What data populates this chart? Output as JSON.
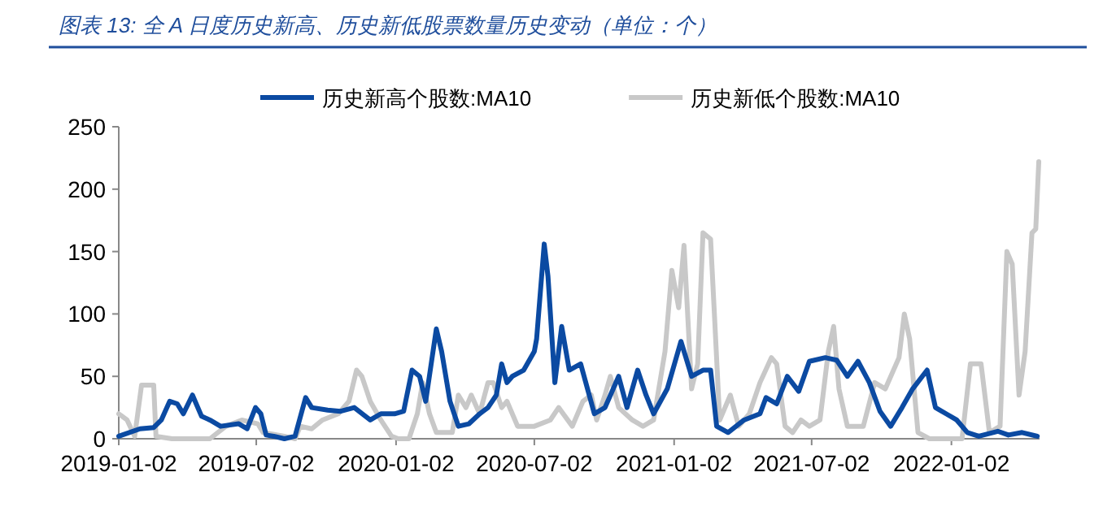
{
  "chart_data": {
    "type": "line",
    "title": "图表 13:  全 A 日度历史新高、历史新低股票数量历史变动（单位：个）",
    "xlim": [
      "2019-01-02",
      "2022-04-28"
    ],
    "xticks": [
      "2019-01-02",
      "2019-07-02",
      "2020-01-02",
      "2020-07-02",
      "2021-01-02",
      "2021-07-02",
      "2022-01-02"
    ],
    "ylim": [
      0,
      250
    ],
    "yticks": [
      0,
      50,
      100,
      150,
      200,
      250
    ],
    "grid": false,
    "legend": "top",
    "marker": "none",
    "line_style": "solid",
    "series": [
      {
        "name": "历史新高个股数:MA10",
        "color": "#0b4aa2",
        "x": [
          "2019-01-02",
          "2019-01-30",
          "2019-02-17",
          "2019-02-27",
          "2019-03-10",
          "2019-03-20",
          "2019-03-28",
          "2019-04-09",
          "2019-04-21",
          "2019-05-02",
          "2019-05-16",
          "2019-06-09",
          "2019-06-20",
          "2019-07-01",
          "2019-07-08",
          "2019-07-15",
          "2019-07-25",
          "2019-08-08",
          "2019-08-22",
          "2019-09-05",
          "2019-09-13",
          "2019-10-04",
          "2019-10-21",
          "2019-11-08",
          "2019-11-29",
          "2019-12-13",
          "2019-12-31",
          "2020-01-12",
          "2020-01-23",
          "2020-02-02",
          "2020-02-10",
          "2020-02-24",
          "2020-03-02",
          "2020-03-13",
          "2020-03-24",
          "2020-04-07",
          "2020-04-21",
          "2020-05-02",
          "2020-05-13",
          "2020-05-20",
          "2020-05-27",
          "2020-06-03",
          "2020-06-18",
          "2020-07-02",
          "2020-07-05",
          "2020-07-15",
          "2020-07-20",
          "2020-07-29",
          "2020-08-07",
          "2020-08-17",
          "2020-09-01",
          "2020-09-19",
          "2020-10-03",
          "2020-10-21",
          "2020-11-01",
          "2020-11-15",
          "2020-11-26",
          "2020-12-06",
          "2020-12-24",
          "2021-01-11",
          "2021-01-25",
          "2021-02-09",
          "2021-02-19",
          "2021-02-27",
          "2021-03-14",
          "2021-04-04",
          "2021-04-25",
          "2021-05-03",
          "2021-05-17",
          "2021-05-31",
          "2021-06-15",
          "2021-06-29",
          "2021-07-20",
          "2021-08-04",
          "2021-08-18",
          "2021-09-01",
          "2021-09-16",
          "2021-09-30",
          "2021-10-14",
          "2021-10-29",
          "2021-11-12",
          "2021-12-01",
          "2021-12-12",
          "2021-12-26",
          "2022-01-09",
          "2022-01-23",
          "2022-02-07",
          "2022-03-04",
          "2022-03-18",
          "2022-04-05",
          "2022-04-25"
        ],
        "values": [
          2,
          8,
          9,
          15,
          30,
          28,
          20,
          35,
          18,
          15,
          10,
          12,
          8,
          25,
          20,
          3,
          2,
          0,
          2,
          33,
          25,
          23,
          22,
          25,
          15,
          20,
          20,
          22,
          55,
          50,
          30,
          88,
          70,
          30,
          10,
          12,
          20,
          25,
          35,
          60,
          45,
          50,
          55,
          70,
          80,
          156,
          130,
          45,
          90,
          55,
          60,
          20,
          25,
          50,
          25,
          55,
          35,
          20,
          40,
          78,
          50,
          55,
          55,
          10,
          5,
          15,
          20,
          33,
          28,
          50,
          38,
          62,
          65,
          63,
          50,
          62,
          45,
          22,
          10,
          25,
          40,
          55,
          25,
          20,
          15,
          5,
          2,
          6,
          3,
          5,
          2
        ]
      },
      {
        "name": "历史新低个股数:MA10",
        "color": "#c8c8c8",
        "x": [
          "2019-01-02",
          "2019-01-13",
          "2019-01-23",
          "2019-02-01",
          "2019-02-17",
          "2019-02-20",
          "2019-03-13",
          "2019-05-02",
          "2019-05-23",
          "2019-06-13",
          "2019-07-04",
          "2019-07-11",
          "2019-08-08",
          "2019-08-22",
          "2019-08-29",
          "2019-09-13",
          "2019-09-27",
          "2019-10-18",
          "2019-11-01",
          "2019-11-11",
          "2019-11-18",
          "2019-11-29",
          "2019-12-13",
          "2019-12-27",
          "2020-01-05",
          "2020-01-19",
          "2020-01-30",
          "2020-02-06",
          "2020-02-15",
          "2020-02-24",
          "2020-03-16",
          "2020-03-24",
          "2020-04-03",
          "2020-04-10",
          "2020-04-21",
          "2020-05-02",
          "2020-05-09",
          "2020-05-20",
          "2020-05-27",
          "2020-06-10",
          "2020-07-02",
          "2020-07-23",
          "2020-08-03",
          "2020-08-21",
          "2020-09-04",
          "2020-09-15",
          "2020-09-22",
          "2020-10-03",
          "2020-10-10",
          "2020-10-21",
          "2020-11-08",
          "2020-11-22",
          "2020-12-06",
          "2020-12-21",
          "2020-12-30",
          "2021-01-08",
          "2021-01-15",
          "2021-01-25",
          "2021-02-02",
          "2021-02-09",
          "2021-02-19",
          "2021-02-24",
          "2021-03-03",
          "2021-03-10",
          "2021-03-17",
          "2021-03-28",
          "2021-04-11",
          "2021-04-25",
          "2021-05-10",
          "2021-05-17",
          "2021-05-28",
          "2021-06-07",
          "2021-06-18",
          "2021-06-29",
          "2021-07-13",
          "2021-07-24",
          "2021-07-31",
          "2021-08-07",
          "2021-08-18",
          "2021-09-08",
          "2021-09-23",
          "2021-10-07",
          "2021-10-25",
          "2021-11-01",
          "2021-11-08",
          "2021-11-19",
          "2021-12-04",
          "2022-01-16",
          "2022-01-27",
          "2022-02-10",
          "2022-02-21",
          "2022-03-07",
          "2022-03-16",
          "2022-03-23",
          "2022-04-01",
          "2022-04-09",
          "2022-04-18",
          "2022-04-23",
          "2022-04-27"
        ],
        "values": [
          20,
          15,
          2,
          43,
          43,
          2,
          0,
          0,
          10,
          15,
          12,
          5,
          2,
          0,
          10,
          8,
          15,
          20,
          30,
          55,
          50,
          30,
          15,
          2,
          0,
          0,
          20,
          45,
          20,
          5,
          5,
          35,
          25,
          35,
          20,
          45,
          45,
          25,
          30,
          10,
          10,
          15,
          25,
          10,
          30,
          35,
          15,
          35,
          50,
          25,
          15,
          10,
          15,
          70,
          135,
          105,
          155,
          40,
          60,
          165,
          160,
          100,
          15,
          25,
          35,
          10,
          20,
          45,
          65,
          60,
          10,
          5,
          15,
          10,
          15,
          70,
          90,
          40,
          10,
          10,
          45,
          40,
          65,
          100,
          80,
          5,
          0,
          0,
          60,
          60,
          5,
          10,
          150,
          140,
          35,
          70,
          165,
          168,
          222
        ]
      }
    ]
  }
}
